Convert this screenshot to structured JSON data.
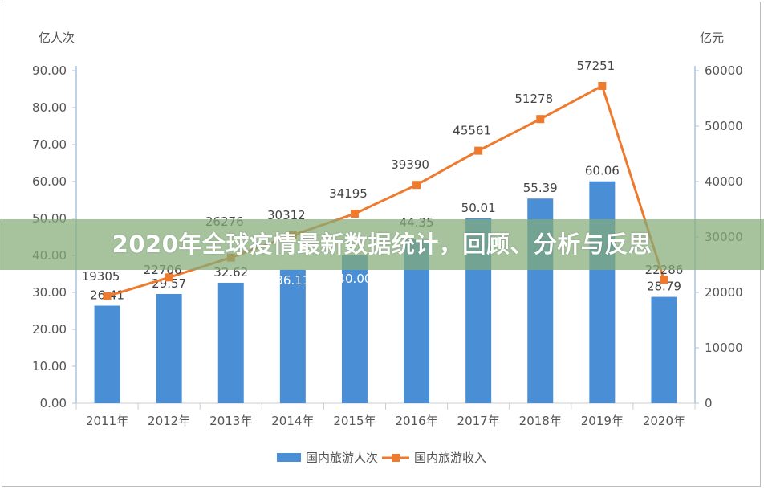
{
  "overlay_title": "2020年全球疫情最新数据统计，回顾、分析与反思",
  "chart_data": {
    "type": "bar+line",
    "categories": [
      "2011年",
      "2012年",
      "2013年",
      "2014年",
      "2015年",
      "2016年",
      "2017年",
      "2018年",
      "2019年",
      "2020年"
    ],
    "y_left_unit": "亿人次",
    "y_right_unit": "亿元",
    "y_left_lim": [
      0,
      90
    ],
    "y_left_ticks": [
      "0.00",
      "10.00",
      "20.00",
      "30.00",
      "40.00",
      "50.00",
      "60.00",
      "70.00",
      "80.00",
      "90.00"
    ],
    "y_right_lim": [
      0,
      60000
    ],
    "y_right_ticks": [
      "0",
      "10000",
      "20000",
      "30000",
      "40000",
      "50000",
      "60000"
    ],
    "legend_position": "bottom",
    "series": [
      {
        "name": "国内旅游人次",
        "type": "bar",
        "axis": "left",
        "color": "#4a8fd6",
        "values": [
          26.41,
          29.57,
          32.62,
          36.11,
          40.0,
          44.35,
          50.01,
          55.39,
          60.06,
          28.79
        ],
        "labels": [
          "26.41",
          "29.57",
          "32.62",
          "36.11",
          "40.00",
          "44.35",
          "50.01",
          "55.39",
          "60.06",
          "28.79"
        ]
      },
      {
        "name": "国内旅游收入",
        "type": "line",
        "axis": "right",
        "color": "#ee7a2e",
        "values": [
          19305,
          22706,
          26276,
          30312,
          34195,
          39390,
          45561,
          51278,
          57251,
          22286
        ],
        "labels": [
          "19305",
          "22706",
          "26276",
          "30312",
          "34195",
          "39390",
          "45561",
          "51278",
          "57251",
          "22286"
        ]
      }
    ]
  }
}
